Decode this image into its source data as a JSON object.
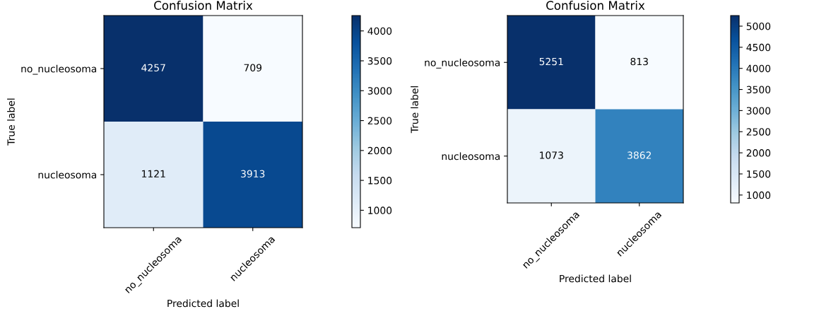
{
  "chart_data": [
    {
      "type": "heatmap",
      "title": "Confusion Matrix",
      "xlabel": "Predicted label",
      "ylabel": "True label",
      "categories": [
        "no_nucleosoma",
        "nucleosoma"
      ],
      "y_categories": [
        "no_nucleosoma",
        "nucleosoma"
      ],
      "cells": [
        [
          4257,
          709
        ],
        [
          1121,
          3913
        ]
      ],
      "clim": [
        709,
        4257
      ],
      "cticks": [
        1000,
        1500,
        2000,
        2500,
        3000,
        3500,
        4000
      ],
      "data_labels": true
    },
    {
      "type": "heatmap",
      "title": "Confusion Matrix",
      "xlabel": "Predicted label",
      "ylabel": "True label",
      "categories": [
        "no_nucleosoma",
        "nucleosoma"
      ],
      "y_categories": [
        "no_nucleosoma",
        "nucleosoma"
      ],
      "cells": [
        [
          5251,
          813
        ],
        [
          1073,
          3862
        ]
      ],
      "clim": [
        813,
        5251
      ],
      "cticks": [
        1000,
        1500,
        2000,
        2500,
        3000,
        3500,
        4000,
        4500,
        5000
      ],
      "data_labels": true
    }
  ]
}
